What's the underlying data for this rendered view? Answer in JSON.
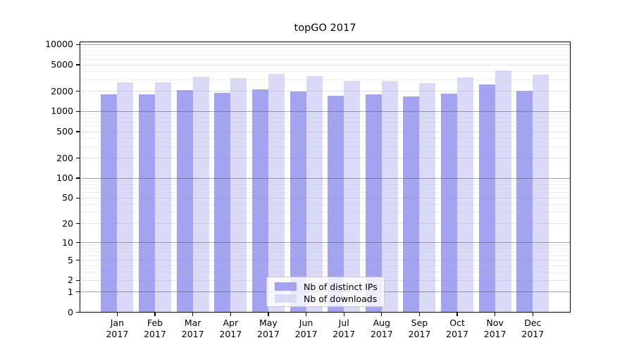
{
  "title": "topGO 2017",
  "legend": {
    "items": [
      {
        "label": "Nb of distinct IPs",
        "color": "#a3a3f1"
      },
      {
        "label": "Nb of downloads",
        "color": "#dadaf8"
      }
    ]
  },
  "colors": {
    "bar_dark": "#a3a3f1",
    "bar_light": "#dadaf8",
    "axis": "#000000",
    "grid_major": "#a4a4a4",
    "grid_mid": "#e2e2e2",
    "grid_minor": "#ededed",
    "legend_border": "#cbcbcb"
  },
  "chart_data": {
    "type": "bar",
    "title": "topGO 2017",
    "x_tick_months": [
      "Jan",
      "Feb",
      "Mar",
      "Apr",
      "May",
      "Jun",
      "Jul",
      "Aug",
      "Sep",
      "Oct",
      "Nov",
      "Dec"
    ],
    "x_tick_year": "2017",
    "y_ticks": [
      0,
      1,
      2,
      5,
      10,
      20,
      50,
      100,
      200,
      500,
      1000,
      2000,
      5000,
      10000
    ],
    "y_scale": "log10(1+x)",
    "ylim": [
      0,
      10000
    ],
    "grid": true,
    "legend_position": "inside-bottom-center",
    "series": [
      {
        "name": "Nb of distinct IPs",
        "color": "#a3a3f1",
        "values": [
          1800,
          1800,
          2080,
          1920,
          2160,
          2010,
          1740,
          1810,
          1700,
          1860,
          2520,
          2020
        ]
      },
      {
        "name": "Nb of downloads",
        "color": "#dadaf8",
        "values": [
          2750,
          2750,
          3320,
          3140,
          3680,
          3380,
          2850,
          2880,
          2650,
          3250,
          4150,
          3550
        ]
      }
    ]
  }
}
